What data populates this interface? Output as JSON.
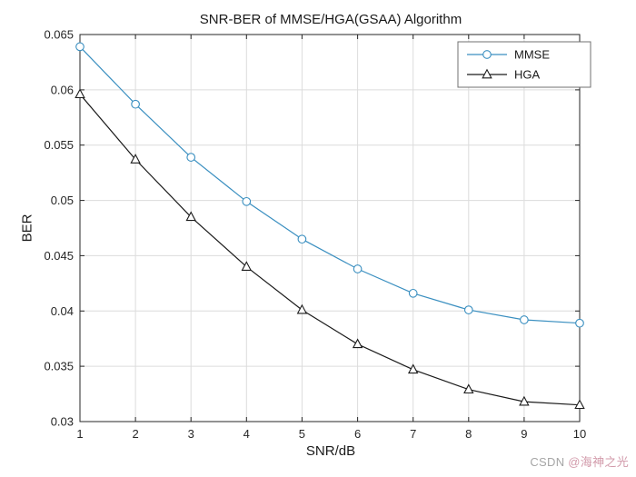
{
  "chart_data": {
    "type": "line",
    "title": "SNR-BER of MMSE/HGA(GSAA) Algorithm",
    "xlabel": "SNR/dB",
    "ylabel": "BER",
    "x": [
      1,
      2,
      3,
      4,
      5,
      6,
      7,
      8,
      9,
      10
    ],
    "series": [
      {
        "name": "MMSE",
        "marker": "circle",
        "color": "#3a8fc0",
        "values": [
          0.0639,
          0.0587,
          0.0539,
          0.0499,
          0.0465,
          0.0438,
          0.0416,
          0.0401,
          0.0392,
          0.0389
        ]
      },
      {
        "name": "HGA",
        "marker": "triangle",
        "color": "#1a1a1a",
        "values": [
          0.0596,
          0.0537,
          0.0485,
          0.044,
          0.0401,
          0.037,
          0.0347,
          0.0329,
          0.0318,
          0.0315
        ]
      }
    ],
    "xlim": [
      1,
      10
    ],
    "ylim": [
      0.03,
      0.065
    ],
    "xticks": [
      1,
      2,
      3,
      4,
      5,
      6,
      7,
      8,
      9,
      10
    ],
    "yticks": [
      0.03,
      0.035,
      0.04,
      0.045,
      0.05,
      0.055,
      0.06,
      0.065
    ],
    "xtick_labels": [
      "1",
      "2",
      "3",
      "4",
      "5",
      "6",
      "7",
      "8",
      "9",
      "10"
    ],
    "ytick_labels": [
      "0.03",
      "0.035",
      "0.04",
      "0.045",
      "0.05",
      "0.055",
      "0.06",
      "0.065"
    ],
    "grid": true,
    "legend": {
      "position": "top-right",
      "entries": [
        "MMSE",
        "HGA"
      ]
    },
    "style": {
      "axis_color": "#262626",
      "grid_color": "#dcdcdc",
      "tick_label_color": "#262626",
      "background": "#ffffff",
      "legend_border": "#707070"
    }
  },
  "watermark": {
    "prefix": "CSDN ",
    "handle": "@海神之光",
    "prefix_color": "#a6a6a6",
    "handle_color": "#d29aaa"
  }
}
